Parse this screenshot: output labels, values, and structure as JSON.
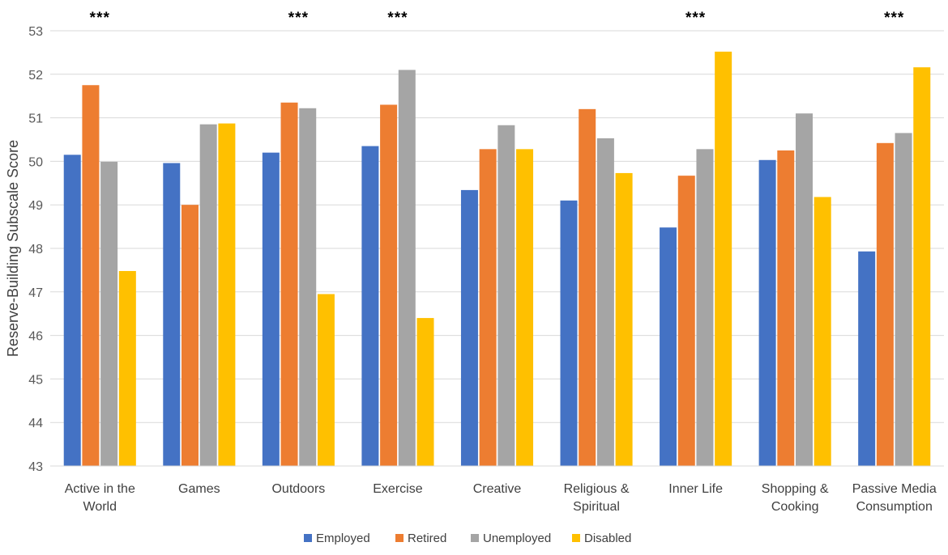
{
  "chart_data": {
    "type": "bar",
    "title": "",
    "ylabel": "Reserve-Building Subscale Score",
    "xlabel": "",
    "ylim": [
      43,
      53
    ],
    "yticks": [
      43,
      44,
      45,
      46,
      47,
      48,
      49,
      50,
      51,
      52,
      53
    ],
    "grid": true,
    "legend_position": "bottom",
    "categories": [
      [
        "Active in the",
        "World"
      ],
      [
        "Games"
      ],
      [
        "Outdoors"
      ],
      [
        "Exercise"
      ],
      [
        "Creative"
      ],
      [
        "Religious &",
        "Spiritual"
      ],
      [
        "Inner Life"
      ],
      [
        "Shopping &",
        "Cooking"
      ],
      [
        "Passive Media",
        "Consumption"
      ]
    ],
    "significance": [
      "***",
      "",
      "***",
      "***",
      "",
      "",
      "***",
      "",
      "***"
    ],
    "series": [
      {
        "name": "Employed",
        "color": "#4472c4",
        "values": [
          50.15,
          49.96,
          50.2,
          50.35,
          49.34,
          49.1,
          48.48,
          50.03,
          47.93
        ]
      },
      {
        "name": "Retired",
        "color": "#ed7d31",
        "values": [
          51.75,
          49.0,
          51.35,
          51.3,
          50.28,
          51.2,
          49.67,
          50.25,
          50.42
        ]
      },
      {
        "name": "Unemployed",
        "color": "#a5a5a5",
        "values": [
          49.99,
          50.85,
          51.22,
          52.1,
          50.83,
          50.53,
          50.28,
          51.1,
          50.65
        ]
      },
      {
        "name": "Disabled",
        "color": "#ffc000",
        "values": [
          47.48,
          50.87,
          46.95,
          46.4,
          50.28,
          49.73,
          52.52,
          49.18,
          52.16
        ]
      }
    ]
  }
}
